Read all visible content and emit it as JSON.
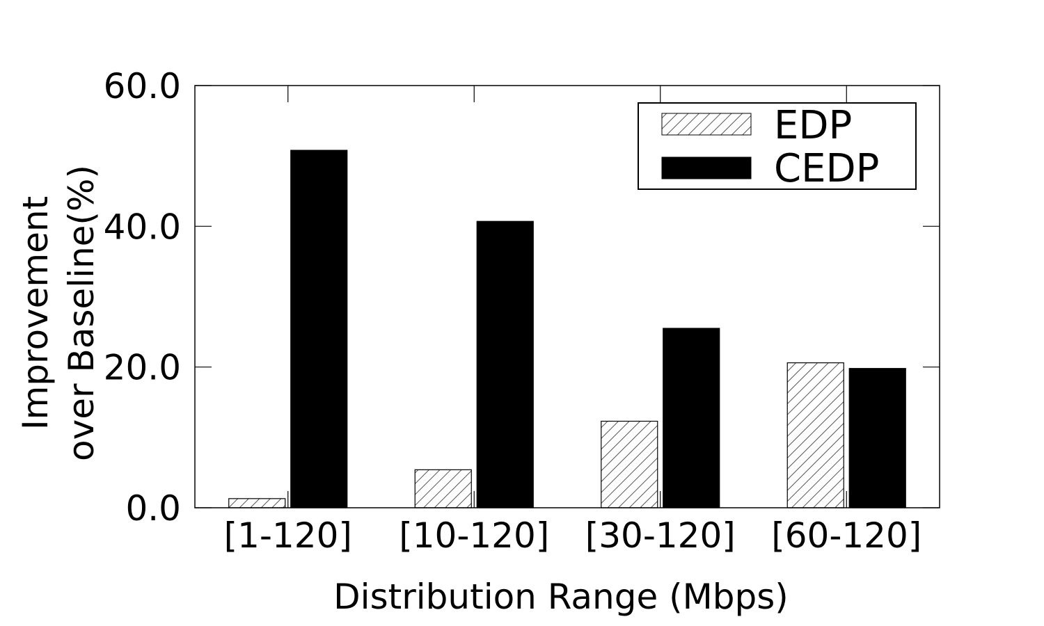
{
  "chart_data": {
    "type": "bar",
    "categories": [
      "[1-120]",
      "[10-120]",
      "[30-120]",
      "[60-120]"
    ],
    "series": [
      {
        "name": "EDP",
        "values": [
          1.3,
          5.4,
          12.3,
          20.6
        ],
        "style": "hatched",
        "color": "#555555"
      },
      {
        "name": "CEDP",
        "values": [
          50.8,
          40.7,
          25.5,
          19.8
        ],
        "style": "solid",
        "color": "#000000"
      }
    ],
    "title": "",
    "xlabel": "Distribution Range (Mbps)",
    "ylabel_lines": [
      "Improvement",
      "over Baseline(%)"
    ],
    "ylim": [
      0,
      60
    ],
    "yticks": [
      "0.0",
      "20.0",
      "40.0",
      "60.0"
    ],
    "grid": false,
    "legend_position": "top-right"
  }
}
